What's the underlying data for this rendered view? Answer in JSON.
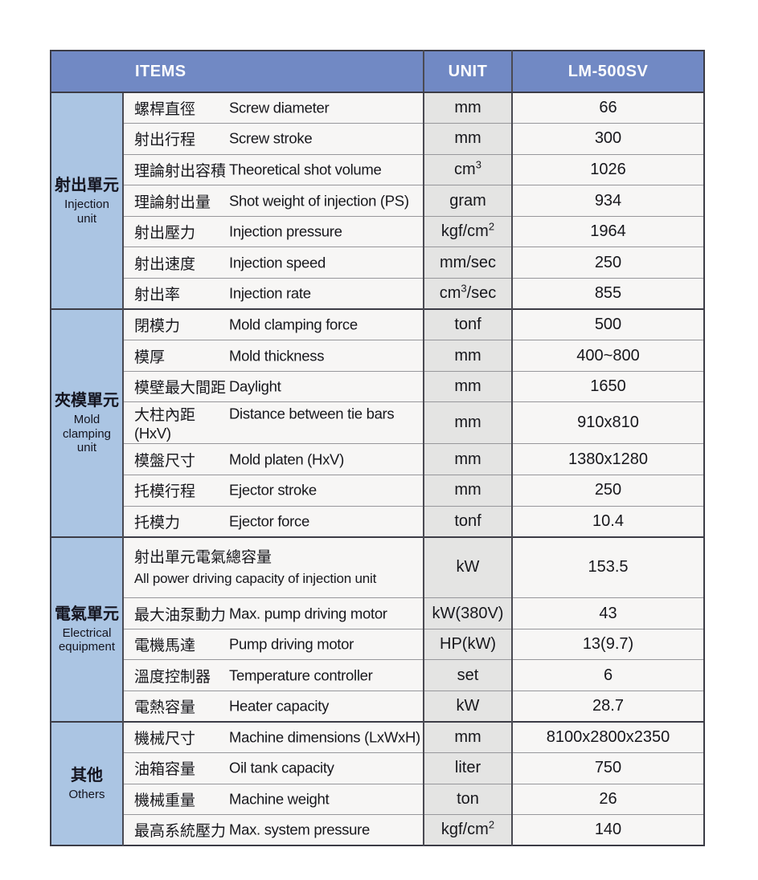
{
  "header": {
    "items": "ITEMS",
    "unit": "UNIT",
    "model": "LM-500SV"
  },
  "colors": {
    "header_bg": "#7189c4",
    "sidebar_bg": "#abc5e3",
    "unit_bg": "#e4e4e3",
    "cell_bg": "#f7f6f5",
    "border_dark": "#3c3c46"
  },
  "groups": [
    {
      "zh": "射出單元",
      "en": "Injection unit",
      "rows": [
        {
          "zh": "螺桿直徑",
          "en": "Screw diameter",
          "unit": {
            "pre": "mm"
          },
          "value": "66"
        },
        {
          "zh": "射出行程",
          "en": "Screw stroke",
          "unit": {
            "pre": "mm"
          },
          "value": "300"
        },
        {
          "zh": "理論射出容積",
          "en": "Theoretical shot volume",
          "unit": {
            "pre": "cm",
            "sup": "3"
          },
          "value": "1026"
        },
        {
          "zh": "理論射出量",
          "en": "Shot weight of injection (PS)",
          "unit": {
            "pre": "gram"
          },
          "value": "934"
        },
        {
          "zh": "射出壓力",
          "en": "Injection pressure",
          "unit": {
            "pre": "kgf/cm",
            "sup": "2"
          },
          "value": "1964"
        },
        {
          "zh": "射出速度",
          "en": "Injection speed",
          "unit": {
            "pre": "mm/sec"
          },
          "value": "250"
        },
        {
          "zh": "射出率",
          "en": "Injection rate",
          "unit": {
            "pre": "cm",
            "sup": "3",
            "post": "/sec"
          },
          "value": "855"
        }
      ]
    },
    {
      "zh": "夾模單元",
      "en": "Mold clamping unit",
      "rows": [
        {
          "zh": "閉模力",
          "en": "Mold clamping force",
          "unit": {
            "pre": "tonf"
          },
          "value": "500"
        },
        {
          "zh": "模厚",
          "en": "Mold thickness",
          "unit": {
            "pre": "mm"
          },
          "value": "400~800"
        },
        {
          "zh": "模壁最大間距",
          "en": "Daylight",
          "unit": {
            "pre": "mm"
          },
          "value": "1650"
        },
        {
          "zh": "大柱內距",
          "en": "Distance between tie bars (HxV)",
          "unit": {
            "pre": "mm"
          },
          "value": "910x810"
        },
        {
          "zh": "模盤尺寸",
          "en": "Mold platen (HxV)",
          "unit": {
            "pre": "mm"
          },
          "value": "1380x1280"
        },
        {
          "zh": "托模行程",
          "en": "Ejector stroke",
          "unit": {
            "pre": "mm"
          },
          "value": "250"
        },
        {
          "zh": "托模力",
          "en": "Ejector force",
          "unit": {
            "pre": "tonf"
          },
          "value": "10.4"
        }
      ]
    },
    {
      "zh": "電氣單元",
      "en": "Electrical equipment",
      "rows": [
        {
          "zh": "射出單元電氣總容量",
          "en": "All power driving capacity of injection unit",
          "stacked": true,
          "unit": {
            "pre": "kW"
          },
          "value": "153.5"
        },
        {
          "zh": "最大油泵動力",
          "en": "Max. pump driving motor",
          "unit": {
            "pre": "kW(380V)"
          },
          "value": "43"
        },
        {
          "zh": "電機馬達",
          "en": "Pump driving motor",
          "unit": {
            "pre": "HP(kW)"
          },
          "value": "13(9.7)"
        },
        {
          "zh": "溫度控制器",
          "en": "Temperature controller",
          "unit": {
            "pre": "set"
          },
          "value": "6"
        },
        {
          "zh": "電熱容量",
          "en": "Heater capacity",
          "unit": {
            "pre": "kW"
          },
          "value": "28.7"
        }
      ]
    },
    {
      "zh": "其他",
      "en": "Others",
      "rows": [
        {
          "zh": "機械尺寸",
          "en": "Machine dimensions (LxWxH)",
          "unit": {
            "pre": "mm"
          },
          "value": "8100x2800x2350"
        },
        {
          "zh": "油箱容量",
          "en": "Oil tank capacity",
          "unit": {
            "pre": "liter"
          },
          "value": "750"
        },
        {
          "zh": "機械重量",
          "en": "Machine weight",
          "unit": {
            "pre": "ton"
          },
          "value": "26"
        },
        {
          "zh": "最高系統壓力",
          "en": "Max. system pressure",
          "unit": {
            "pre": "kgf/cm",
            "sup": "2"
          },
          "value": "140"
        }
      ]
    }
  ]
}
